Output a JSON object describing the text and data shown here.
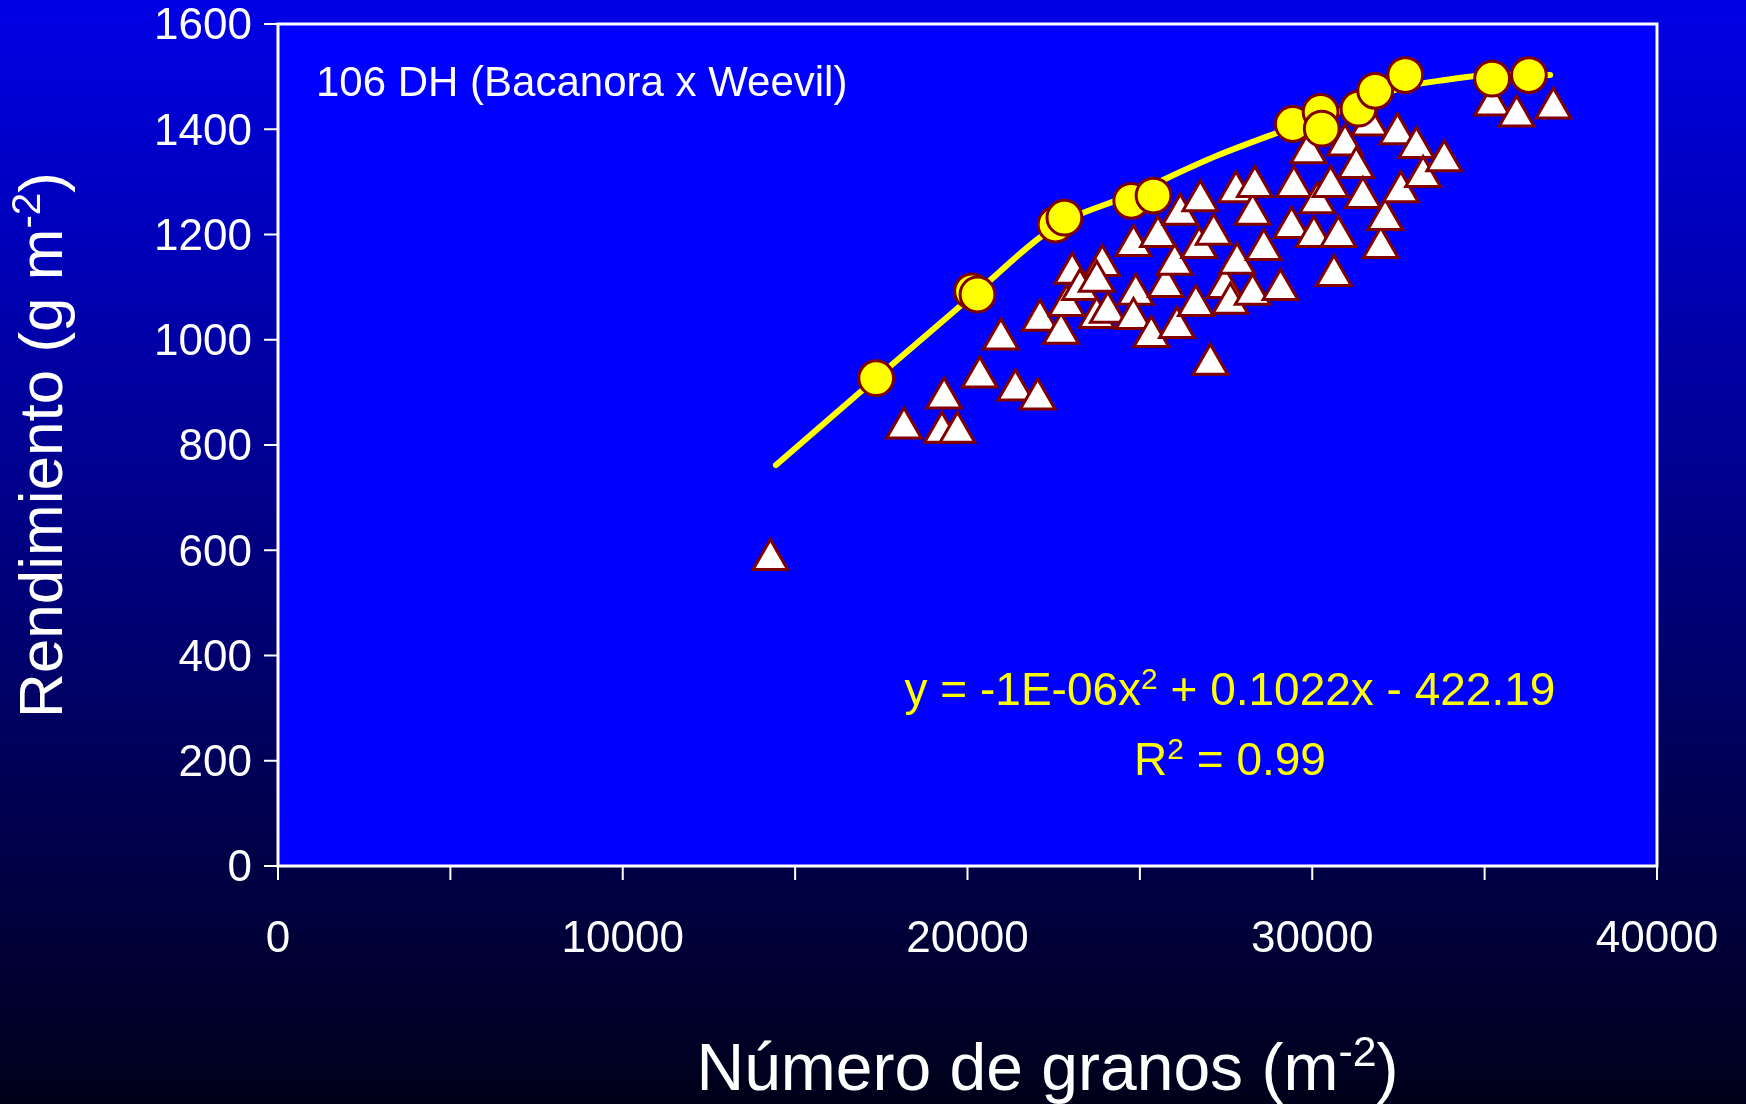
{
  "chart_data": {
    "type": "scatter",
    "xlabel": "Número de granos (m$^{-2}$)",
    "ylabel": "Rendimiento (g m$^{-2}$)",
    "annotations": [
      "106 DH (Bacanora x Weevil)",
      "y = -1E-06x$^{2}$ + 0.1022x - 422.19",
      "R$^{2}$ = 0.99"
    ],
    "xlim": [
      0,
      40000
    ],
    "xticks": [
      0,
      {
        "value": 5000,
        "label": null
      },
      10000,
      {
        "value": 15000,
        "label": null
      },
      20000,
      {
        "value": 25000,
        "label": null
      },
      30000,
      {
        "value": 35000,
        "label": null
      },
      40000
    ],
    "ylim": [
      0,
      1600
    ],
    "yticks": [
      0,
      200,
      400,
      600,
      800,
      1000,
      1200,
      1400,
      1600
    ],
    "grid": false,
    "series": [
      {
        "marker": "triangle",
        "color": "#ffffff",
        "x": [
          14281,
          18158,
          19257,
          19709,
          19321,
          20355,
          20969,
          21389,
          22036,
          22100,
          22714,
          22875,
          23037,
          23263,
          23748,
          23910,
          23748,
          24071,
          24814,
          24879,
          24814,
          25331,
          25525,
          25751,
          26010,
          26171,
          26074,
          26623,
          26720,
          26752,
          27043,
          27140,
          27463,
          27625,
          27787,
          27819,
          28271,
          28271,
          28336,
          28594,
          29079,
          29402,
          29467,
          29887,
          30048,
          30145,
          30533,
          30630,
          30759,
          30953,
          31276,
          31470,
          31664,
          31987,
          32116,
          32472,
          32569,
          33021,
          33215,
          33829,
          35218,
          35929,
          36995
        ],
        "values": [
          588,
          838,
          830,
          830,
          895,
          935,
          1007,
          910,
          893,
          1043,
          1018,
          1071,
          1132,
          1101,
          1048,
          1147,
          1117,
          1058,
          1185,
          1092,
          1046,
          1012,
          1202,
          1107,
          1149,
          1244,
          1029,
          1071,
          1181,
          1270,
          959,
          1206,
          1105,
          1075,
          1287,
          1151,
          1092,
          1244,
          1297,
          1177,
          1101,
          1219,
          1297,
          1361,
          1202,
          1266,
          1297,
          1128,
          1202,
          1376,
          1333,
          1276,
          1414,
          1181,
          1234,
          1397,
          1287,
          1371,
          1316,
          1346,
          1452,
          1431,
          1446
        ]
      },
      {
        "type": "line",
        "marker": "none",
        "color": "#ffff00",
        "x": [
          14443,
          17351,
          20290,
          22500,
          24750,
          27250,
          29400,
          31300,
          32700,
          33900,
          35200,
          36900
        ],
        "values": [
          762,
          927,
          1092,
          1213,
          1276,
          1350,
          1403,
          1446,
          1481,
          1494,
          1503,
          1503
        ]
      },
      {
        "marker": "circle",
        "color": "#ffff00",
        "x": [
          17351,
          20130,
          20290,
          22553,
          22811,
          24750,
          25396,
          29435,
          30242,
          30275,
          31341,
          31826,
          32698,
          35218,
          36284
        ],
        "values": [
          927,
          1092,
          1086,
          1219,
          1232,
          1264,
          1274,
          1410,
          1433,
          1401,
          1439,
          1473,
          1503,
          1496,
          1503
        ]
      }
    ]
  }
}
